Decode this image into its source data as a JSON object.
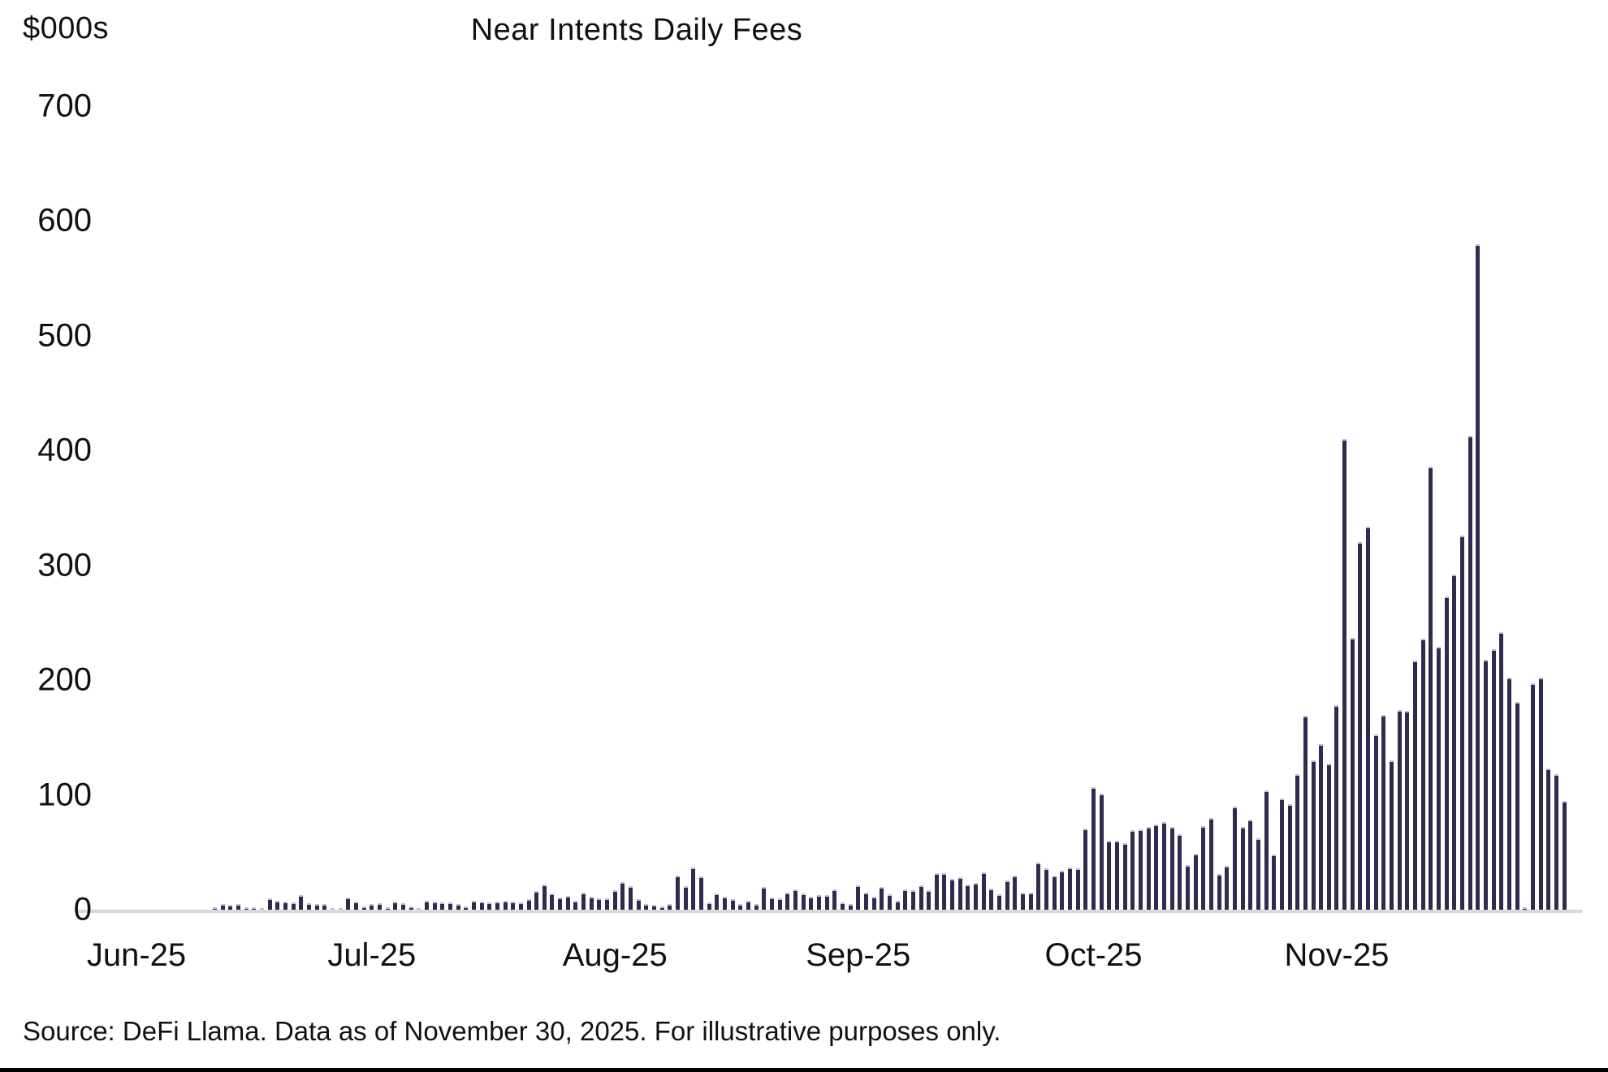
{
  "title": "Near Intents Daily Fees",
  "y_axis_unit_label": "$000s",
  "source_note": "Source: DeFi Llama. Data as of November 30, 2025. For illustrative purposes only.",
  "colors": {
    "bar": "#302a4e",
    "bar_cap": "#c3bbda",
    "axis_line": "#d9d9d9",
    "text": "#111111",
    "bottom_rule": "#000000",
    "background": "#ffffff"
  },
  "chart_data": {
    "type": "bar",
    "title": "Near Intents Daily Fees",
    "xlabel": "",
    "ylabel": "$000s",
    "ylim": [
      0,
      700
    ],
    "ytick_step": 100,
    "ytick_labels": [
      "0",
      "100",
      "200",
      "300",
      "400",
      "500",
      "600",
      "700"
    ],
    "grid": false,
    "legend": "none",
    "x_month_labels": [
      "Jun-25",
      "Jul-25",
      "Aug-25",
      "Sep-25",
      "Oct-25",
      "Nov-25"
    ],
    "days_per_month": [
      30,
      31,
      31,
      30,
      31,
      30
    ],
    "x_start_date": "2025-06-01",
    "x_end_date": "2025-11-30",
    "series": [
      {
        "name": "Daily Fees ($000s)",
        "values": [
          0,
          0,
          0,
          0,
          0,
          0,
          0,
          0,
          0,
          0,
          2,
          5,
          4,
          5,
          2,
          2,
          1.5,
          10,
          7.5,
          7,
          6.5,
          13,
          6,
          5,
          4.7,
          1,
          0.5,
          10.5,
          7,
          2.5,
          5,
          6,
          2,
          7,
          6,
          2.5,
          1,
          8,
          7,
          6.5,
          6.5,
          4.7,
          3,
          8,
          7,
          6.5,
          7,
          8,
          7,
          6.5,
          9.4,
          16.4,
          22,
          14,
          10.5,
          12,
          7.5,
          14.5,
          11,
          10,
          10,
          17,
          24,
          20.5,
          9,
          5,
          4,
          2.5,
          5,
          30,
          20.5,
          37,
          29,
          6.5,
          14,
          11,
          9,
          4.7,
          7.5,
          5,
          20,
          10.5,
          10,
          15,
          17.5,
          14,
          11,
          13,
          13,
          18,
          6.5,
          4.7,
          21,
          15,
          11,
          19.5,
          13.5,
          8,
          17.5,
          17,
          21,
          17,
          32,
          31.6,
          27,
          28.5,
          22,
          23.4,
          32.8,
          18.7,
          13.6,
          25.3,
          30,
          15,
          14.5,
          41,
          36.3,
          29.7,
          34,
          36.7,
          35.8,
          70.7,
          106.5,
          101,
          60,
          60,
          58,
          69,
          70,
          72,
          74,
          76.5,
          72,
          66,
          39,
          48.5,
          72.5,
          80,
          31,
          38,
          90,
          72,
          78.5,
          62.5,
          104,
          48,
          97,
          92,
          118,
          169,
          130,
          144,
          127,
          178,
          410,
          237,
          320,
          334,
          153,
          170,
          130,
          174,
          173,
          217,
          236,
          386,
          229,
          273,
          292,
          326,
          413,
          580,
          218,
          227,
          242,
          202,
          181,
          2,
          197,
          202,
          123,
          118,
          95
        ]
      }
    ]
  }
}
